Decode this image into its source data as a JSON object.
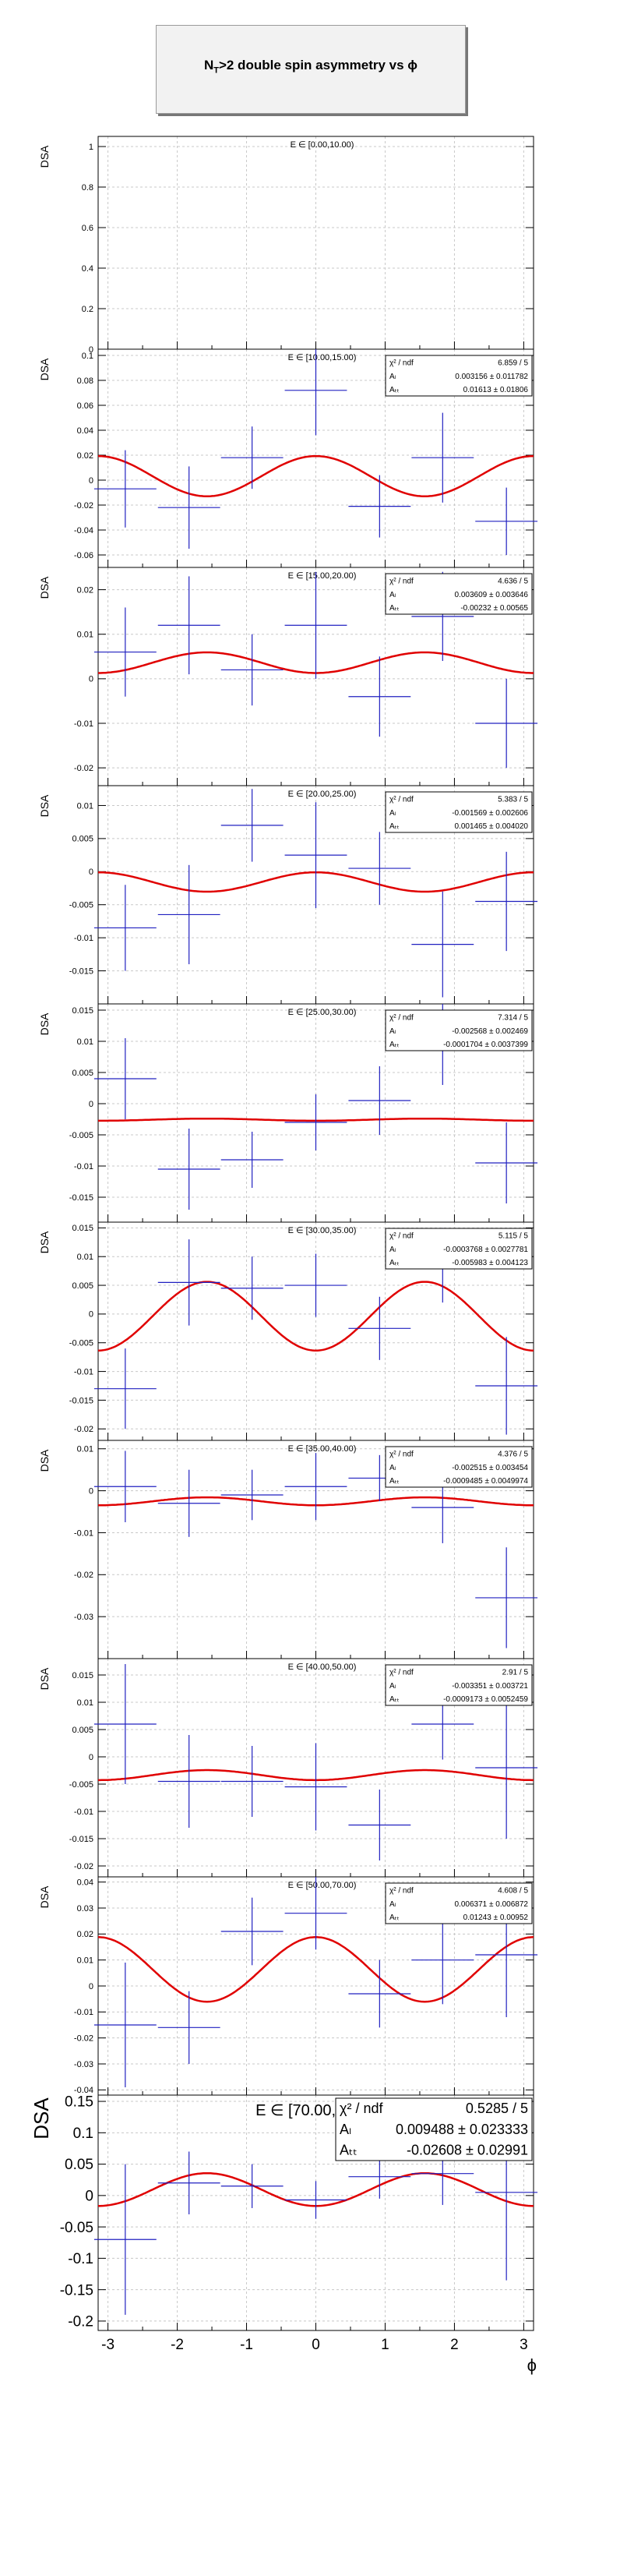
{
  "title": {
    "prefix": "N",
    "sub": "T",
    "suffix": ">2 double spin asymmetry vs ϕ"
  },
  "colors": {
    "data": "#2020c0",
    "fit": "#e00000",
    "grid": "#c8c8c8",
    "axis": "#000000"
  },
  "chart_data": [
    {
      "type": "scatter",
      "bin": "E ∈ [0.00,10.00)",
      "ylabel": "DSA",
      "ylim": [
        0,
        1.05
      ],
      "yticks": [
        0,
        0.2,
        0.4,
        0.6,
        0.8,
        1
      ],
      "ytick_labels": [
        "0",
        "0.2",
        "0.4",
        "0.6",
        "0.8",
        "1"
      ],
      "fit": null,
      "points": []
    },
    {
      "type": "scatter",
      "bin": "E ∈ [10.00,15.00)",
      "ylabel": "DSA",
      "ylim": [
        -0.07,
        0.105
      ],
      "yticks": [
        -0.06,
        -0.04,
        -0.02,
        0,
        0.02,
        0.04,
        0.06,
        0.08,
        0.1
      ],
      "ytick_labels": [
        "-0.06",
        "-0.04",
        "-0.02",
        "0",
        "0.02",
        "0.04",
        "0.06",
        "0.08",
        "0.1"
      ],
      "fit": {
        "stats": [
          {
            "label": "χ² / ndf",
            "value": "6.859 / 5"
          },
          {
            "label": "Aₗ",
            "value": "0.003156 ± 0.011782"
          },
          {
            "label": "Aₜₜ",
            "value": "0.01613 ± 0.01806"
          }
        ],
        "AL": 0.003156,
        "ATT": 0.01613
      },
      "points": [
        {
          "x": -2.75,
          "y": -0.007,
          "err": 0.031
        },
        {
          "x": -1.83,
          "y": -0.022,
          "err": 0.033
        },
        {
          "x": -0.92,
          "y": 0.018,
          "err": 0.025
        },
        {
          "x": 0.0,
          "y": 0.072,
          "err": 0.036
        },
        {
          "x": 0.92,
          "y": -0.021,
          "err": 0.025
        },
        {
          "x": 1.83,
          "y": 0.018,
          "err": 0.036
        },
        {
          "x": 2.75,
          "y": -0.033,
          "err": 0.027
        }
      ]
    },
    {
      "type": "scatter",
      "bin": "E ∈ [15.00,20.00)",
      "ylabel": "DSA",
      "ylim": [
        -0.024,
        0.025
      ],
      "yticks": [
        -0.02,
        -0.01,
        0,
        0.01,
        0.02
      ],
      "ytick_labels": [
        "-0.02",
        "-0.01",
        "0",
        "0.01",
        "0.02"
      ],
      "fit": {
        "stats": [
          {
            "label": "χ² / ndf",
            "value": "4.636 / 5"
          },
          {
            "label": "Aₗ",
            "value": "0.003609 ± 0.003646"
          },
          {
            "label": "Aₜₜ",
            "value": "-0.00232 ± 0.00565"
          }
        ],
        "AL": 0.003609,
        "ATT": -0.00232
      },
      "points": [
        {
          "x": -2.75,
          "y": 0.006,
          "err": 0.01
        },
        {
          "x": -1.83,
          "y": 0.012,
          "err": 0.011
        },
        {
          "x": -0.92,
          "y": 0.002,
          "err": 0.008
        },
        {
          "x": 0.0,
          "y": 0.012,
          "err": 0.012
        },
        {
          "x": 0.92,
          "y": -0.004,
          "err": 0.009
        },
        {
          "x": 1.83,
          "y": 0.014,
          "err": 0.01
        },
        {
          "x": 2.75,
          "y": -0.01,
          "err": 0.01
        }
      ]
    },
    {
      "type": "scatter",
      "bin": "E ∈ [20.00,25.00)",
      "ylabel": "DSA",
      "ylim": [
        -0.02,
        0.013
      ],
      "yticks": [
        -0.015,
        -0.01,
        -0.005,
        0,
        0.005,
        0.01
      ],
      "ytick_labels": [
        "-0.015",
        "-0.01",
        "-0.005",
        "0",
        "0.005",
        "0.01"
      ],
      "fit": {
        "stats": [
          {
            "label": "χ² / ndf",
            "value": "5.383 / 5"
          },
          {
            "label": "Aₗ",
            "value": "-0.001569 ± 0.002606"
          },
          {
            "label": "Aₜₜ",
            "value": "0.001465 ± 0.004020"
          }
        ],
        "AL": -0.001569,
        "ATT": 0.001465
      },
      "points": [
        {
          "x": -2.75,
          "y": -0.0085,
          "err": 0.0065
        },
        {
          "x": -1.83,
          "y": -0.0065,
          "err": 0.0075
        },
        {
          "x": -0.92,
          "y": 0.007,
          "err": 0.0055
        },
        {
          "x": 0.0,
          "y": 0.0025,
          "err": 0.008
        },
        {
          "x": 0.92,
          "y": 0.0005,
          "err": 0.0055
        },
        {
          "x": 1.83,
          "y": -0.011,
          "err": 0.008
        },
        {
          "x": 2.75,
          "y": -0.0045,
          "err": 0.0075
        }
      ]
    },
    {
      "type": "scatter",
      "bin": "E ∈ [25.00,30.00)",
      "ylabel": "DSA",
      "ylim": [
        -0.019,
        0.016
      ],
      "yticks": [
        -0.015,
        -0.01,
        -0.005,
        0,
        0.005,
        0.01,
        0.015
      ],
      "ytick_labels": [
        "-0.015",
        "-0.01",
        "-0.005",
        "0",
        "0.005",
        "0.01",
        "0.015"
      ],
      "fit": {
        "stats": [
          {
            "label": "χ² / ndf",
            "value": "7.314 / 5"
          },
          {
            "label": "Aₗ",
            "value": "-0.002568 ± 0.002469"
          },
          {
            "label": "Aₜₜ",
            "value": "-0.0001704 ± 0.0037399"
          }
        ],
        "AL": -0.002568,
        "ATT": -0.0001704
      },
      "points": [
        {
          "x": -2.75,
          "y": 0.004,
          "err": 0.0065
        },
        {
          "x": -1.83,
          "y": -0.0105,
          "err": 0.0065
        },
        {
          "x": -0.92,
          "y": -0.009,
          "err": 0.0045
        },
        {
          "x": 0.0,
          "y": -0.003,
          "err": 0.0045
        },
        {
          "x": 0.92,
          "y": 0.0005,
          "err": 0.0055
        },
        {
          "x": 1.83,
          "y": 0.0095,
          "err": 0.0065
        },
        {
          "x": 2.75,
          "y": -0.0095,
          "err": 0.0065
        }
      ]
    },
    {
      "type": "scatter",
      "bin": "E ∈ [30.00,35.00)",
      "ylabel": "DSA",
      "ylim": [
        -0.022,
        0.016
      ],
      "yticks": [
        -0.02,
        -0.015,
        -0.01,
        -0.005,
        0,
        0.005,
        0.01,
        0.015
      ],
      "ytick_labels": [
        "-0.02",
        "-0.015",
        "-0.01",
        "-0.005",
        "0",
        "0.005",
        "0.01",
        "0.015"
      ],
      "fit": {
        "stats": [
          {
            "label": "χ² / ndf",
            "value": "5.115 / 5"
          },
          {
            "label": "Aₗ",
            "value": "-0.0003768 ± 0.0027781"
          },
          {
            "label": "Aₜₜ",
            "value": "-0.005983 ± 0.004123"
          }
        ],
        "AL": -0.0003768,
        "ATT": -0.005983
      },
      "points": [
        {
          "x": -2.75,
          "y": -0.013,
          "err": 0.007
        },
        {
          "x": -1.83,
          "y": 0.0055,
          "err": 0.0075
        },
        {
          "x": -0.92,
          "y": 0.0045,
          "err": 0.0055
        },
        {
          "x": 0.0,
          "y": 0.005,
          "err": 0.0055
        },
        {
          "x": 0.92,
          "y": -0.0025,
          "err": 0.0055
        },
        {
          "x": 1.83,
          "y": 0.0085,
          "err": 0.0065
        },
        {
          "x": 2.75,
          "y": -0.0125,
          "err": 0.0085
        }
      ]
    },
    {
      "type": "scatter",
      "bin": "E ∈ [35.00,40.00)",
      "ylabel": "DSA",
      "ylim": [
        -0.04,
        0.012
      ],
      "yticks": [
        -0.03,
        -0.02,
        -0.01,
        0,
        0.01
      ],
      "ytick_labels": [
        "-0.03",
        "-0.02",
        "-0.01",
        "0",
        "0.01"
      ],
      "fit": {
        "stats": [
          {
            "label": "χ² / ndf",
            "value": "4.376 / 5"
          },
          {
            "label": "Aₗ",
            "value": "-0.002515 ± 0.003454"
          },
          {
            "label": "Aₜₜ",
            "value": "-0.0009485 ± 0.0049974"
          }
        ],
        "AL": -0.002515,
        "ATT": -0.0009485
      },
      "points": [
        {
          "x": -2.75,
          "y": 0.001,
          "err": 0.0085
        },
        {
          "x": -1.83,
          "y": -0.003,
          "err": 0.008
        },
        {
          "x": -0.92,
          "y": -0.001,
          "err": 0.006
        },
        {
          "x": 0.0,
          "y": 0.001,
          "err": 0.008
        },
        {
          "x": 0.92,
          "y": 0.003,
          "err": 0.0055
        },
        {
          "x": 1.83,
          "y": -0.004,
          "err": 0.0085
        },
        {
          "x": 2.75,
          "y": -0.0255,
          "err": 0.012
        }
      ]
    },
    {
      "type": "scatter",
      "bin": "E ∈ [40.00,50.00)",
      "ylabel": "DSA",
      "ylim": [
        -0.022,
        0.018
      ],
      "yticks": [
        -0.02,
        -0.015,
        -0.01,
        -0.005,
        0,
        0.005,
        0.01,
        0.015
      ],
      "ytick_labels": [
        "-0.02",
        "-0.015",
        "-0.01",
        "-0.005",
        "0",
        "0.005",
        "0.01",
        "0.015"
      ],
      "fit": {
        "stats": [
          {
            "label": "χ² / ndf",
            "value": "2.91 / 5"
          },
          {
            "label": "Aₗ",
            "value": "-0.003351 ± 0.003721"
          },
          {
            "label": "Aₜₜ",
            "value": "-0.0009173 ± 0.0052459"
          }
        ],
        "AL": -0.003351,
        "ATT": -0.0009173
      },
      "points": [
        {
          "x": -2.75,
          "y": 0.006,
          "err": 0.011
        },
        {
          "x": -1.83,
          "y": -0.0045,
          "err": 0.0085
        },
        {
          "x": -0.92,
          "y": -0.0045,
          "err": 0.0065
        },
        {
          "x": 0.0,
          "y": -0.0055,
          "err": 0.008
        },
        {
          "x": 0.92,
          "y": -0.0125,
          "err": 0.0065
        },
        {
          "x": 1.83,
          "y": 0.006,
          "err": 0.0065
        },
        {
          "x": 2.75,
          "y": -0.002,
          "err": 0.013
        }
      ]
    },
    {
      "type": "scatter",
      "bin": "E ∈ [50.00,70.00)",
      "ylabel": "DSA",
      "ylim": [
        -0.042,
        0.042
      ],
      "yticks": [
        -0.04,
        -0.03,
        -0.02,
        -0.01,
        0,
        0.01,
        0.02,
        0.03,
        0.04
      ],
      "ytick_labels": [
        "-0.04",
        "-0.03",
        "-0.02",
        "-0.01",
        "0",
        "0.01",
        "0.02",
        "0.03",
        "0.04"
      ],
      "fit": {
        "stats": [
          {
            "label": "χ² / ndf",
            "value": "4.608 / 5"
          },
          {
            "label": "Aₗ",
            "value": "0.006371 ± 0.006872"
          },
          {
            "label": "Aₜₜ",
            "value": "0.01243 ± 0.00952"
          }
        ],
        "AL": 0.006371,
        "ATT": 0.01243
      },
      "points": [
        {
          "x": -2.75,
          "y": -0.015,
          "err": 0.024
        },
        {
          "x": -1.83,
          "y": -0.016,
          "err": 0.014
        },
        {
          "x": -0.92,
          "y": 0.021,
          "err": 0.013
        },
        {
          "x": 0.0,
          "y": 0.028,
          "err": 0.014
        },
        {
          "x": 0.92,
          "y": -0.003,
          "err": 0.013
        },
        {
          "x": 1.83,
          "y": 0.01,
          "err": 0.017
        },
        {
          "x": 2.75,
          "y": 0.012,
          "err": 0.024
        }
      ]
    },
    {
      "type": "scatter",
      "bin": "E ∈ [70.00,100.00)",
      "ylabel": "DSA",
      "xlabel": "ϕ",
      "ylim": [
        -0.215,
        0.16
      ],
      "yticks": [
        -0.2,
        -0.15,
        -0.1,
        -0.05,
        0,
        0.05,
        0.1,
        0.15
      ],
      "ytick_labels": [
        "-0.2",
        "-0.15",
        "-0.1",
        "-0.05",
        "0",
        "0.05",
        "0.1",
        "0.15"
      ],
      "xlim": [
        -3.1416,
        3.1416
      ],
      "xticks": [
        -3,
        -2,
        -1,
        0,
        1,
        2,
        3
      ],
      "xtick_labels": [
        "-3",
        "-2",
        "-1",
        "0",
        "1",
        "2",
        "3"
      ],
      "fit": {
        "stats": [
          {
            "label": "χ² / ndf",
            "value": "0.5285 / 5"
          },
          {
            "label": "Aₗ",
            "value": "0.009488 ± 0.023333"
          },
          {
            "label": "Aₜₜ",
            "value": "-0.02608 ± 0.02991"
          }
        ],
        "AL": 0.009488,
        "ATT": -0.02608
      },
      "points": [
        {
          "x": -2.75,
          "y": -0.07,
          "err": 0.12
        },
        {
          "x": -1.83,
          "y": 0.02,
          "err": 0.05
        },
        {
          "x": -0.92,
          "y": 0.015,
          "err": 0.035
        },
        {
          "x": 0.0,
          "y": -0.007,
          "err": 0.03
        },
        {
          "x": 0.92,
          "y": 0.03,
          "err": 0.035
        },
        {
          "x": 1.83,
          "y": 0.035,
          "err": 0.05
        },
        {
          "x": 2.75,
          "y": 0.005,
          "err": 0.14
        }
      ]
    }
  ]
}
